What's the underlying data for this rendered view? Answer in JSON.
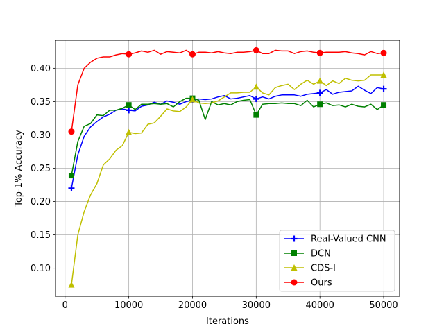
{
  "chart_data": {
    "type": "line",
    "title": "",
    "xlabel": "Iterations",
    "ylabel": "Top-1% Accuracy",
    "xlim": [
      -1500,
      52500
    ],
    "ylim": [
      0.058,
      0.442
    ],
    "xticks": [
      0,
      10000,
      20000,
      30000,
      40000,
      50000
    ],
    "xtick_labels": [
      "0",
      "10000",
      "20000",
      "30000",
      "40000",
      "50000"
    ],
    "yticks": [
      0.1,
      0.15,
      0.2,
      0.25,
      0.3,
      0.35,
      0.4
    ],
    "ytick_labels": [
      "0.10",
      "0.15",
      "0.20",
      "0.25",
      "0.30",
      "0.35",
      "0.40"
    ],
    "grid": true,
    "legend_position": "lower-right",
    "x": [
      1000,
      2000,
      3000,
      4000,
      5000,
      6000,
      7000,
      8000,
      9000,
      10000,
      11000,
      12000,
      13000,
      14000,
      15000,
      16000,
      17000,
      18000,
      19000,
      20000,
      21000,
      22000,
      23000,
      24000,
      25000,
      26000,
      27000,
      28000,
      29000,
      30000,
      31000,
      32000,
      33000,
      34000,
      35000,
      36000,
      37000,
      38000,
      39000,
      40000,
      41000,
      42000,
      43000,
      44000,
      45000,
      46000,
      47000,
      48000,
      49000,
      50000
    ],
    "marker_x": [
      1000,
      10000,
      20000,
      30000,
      40000,
      50000
    ],
    "series": [
      {
        "name": "Real-Valued CNN",
        "color": "#0000ff",
        "marker": "plus",
        "values": [
          0.22,
          0.27,
          0.298,
          0.312,
          0.32,
          0.327,
          0.331,
          0.337,
          0.339,
          0.337,
          0.336,
          0.343,
          0.345,
          0.349,
          0.346,
          0.351,
          0.349,
          0.346,
          0.35,
          0.352,
          0.354,
          0.353,
          0.354,
          0.357,
          0.359,
          0.354,
          0.355,
          0.357,
          0.359,
          0.354,
          0.357,
          0.354,
          0.358,
          0.36,
          0.36,
          0.36,
          0.358,
          0.361,
          0.362,
          0.363,
          0.368,
          0.361,
          0.364,
          0.365,
          0.366,
          0.373,
          0.367,
          0.362,
          0.371,
          0.369
        ]
      },
      {
        "name": "DCN",
        "color": "#008000",
        "marker": "square",
        "values": [
          0.239,
          0.29,
          0.313,
          0.317,
          0.33,
          0.329,
          0.337,
          0.337,
          0.34,
          0.345,
          0.338,
          0.346,
          0.346,
          0.347,
          0.346,
          0.347,
          0.342,
          0.35,
          0.355,
          0.355,
          0.352,
          0.323,
          0.35,
          0.345,
          0.347,
          0.345,
          0.35,
          0.352,
          0.353,
          0.33,
          0.346,
          0.347,
          0.347,
          0.348,
          0.347,
          0.347,
          0.344,
          0.352,
          0.342,
          0.346,
          0.348,
          0.344,
          0.345,
          0.342,
          0.346,
          0.343,
          0.342,
          0.346,
          0.338,
          0.345
        ]
      },
      {
        "name": "CDS-I",
        "color": "#bfbf00",
        "marker": "triangle",
        "values": [
          0.075,
          0.15,
          0.185,
          0.21,
          0.227,
          0.255,
          0.264,
          0.277,
          0.284,
          0.304,
          0.302,
          0.303,
          0.316,
          0.318,
          0.328,
          0.339,
          0.336,
          0.335,
          0.342,
          0.353,
          0.348,
          0.347,
          0.348,
          0.351,
          0.357,
          0.363,
          0.363,
          0.364,
          0.364,
          0.372,
          0.363,
          0.36,
          0.371,
          0.374,
          0.376,
          0.368,
          0.376,
          0.382,
          0.376,
          0.381,
          0.374,
          0.381,
          0.377,
          0.385,
          0.382,
          0.381,
          0.382,
          0.39,
          0.39,
          0.39
        ]
      },
      {
        "name": "Ours",
        "color": "#ff0000",
        "marker": "circle",
        "values": [
          0.305,
          0.375,
          0.4,
          0.409,
          0.415,
          0.417,
          0.417,
          0.42,
          0.422,
          0.421,
          0.423,
          0.426,
          0.424,
          0.427,
          0.421,
          0.425,
          0.424,
          0.423,
          0.427,
          0.421,
          0.424,
          0.424,
          0.423,
          0.425,
          0.423,
          0.422,
          0.424,
          0.424,
          0.425,
          0.427,
          0.422,
          0.422,
          0.427,
          0.426,
          0.426,
          0.422,
          0.425,
          0.426,
          0.424,
          0.423,
          0.424,
          0.424,
          0.424,
          0.425,
          0.423,
          0.422,
          0.42,
          0.425,
          0.422,
          0.423
        ]
      }
    ]
  }
}
